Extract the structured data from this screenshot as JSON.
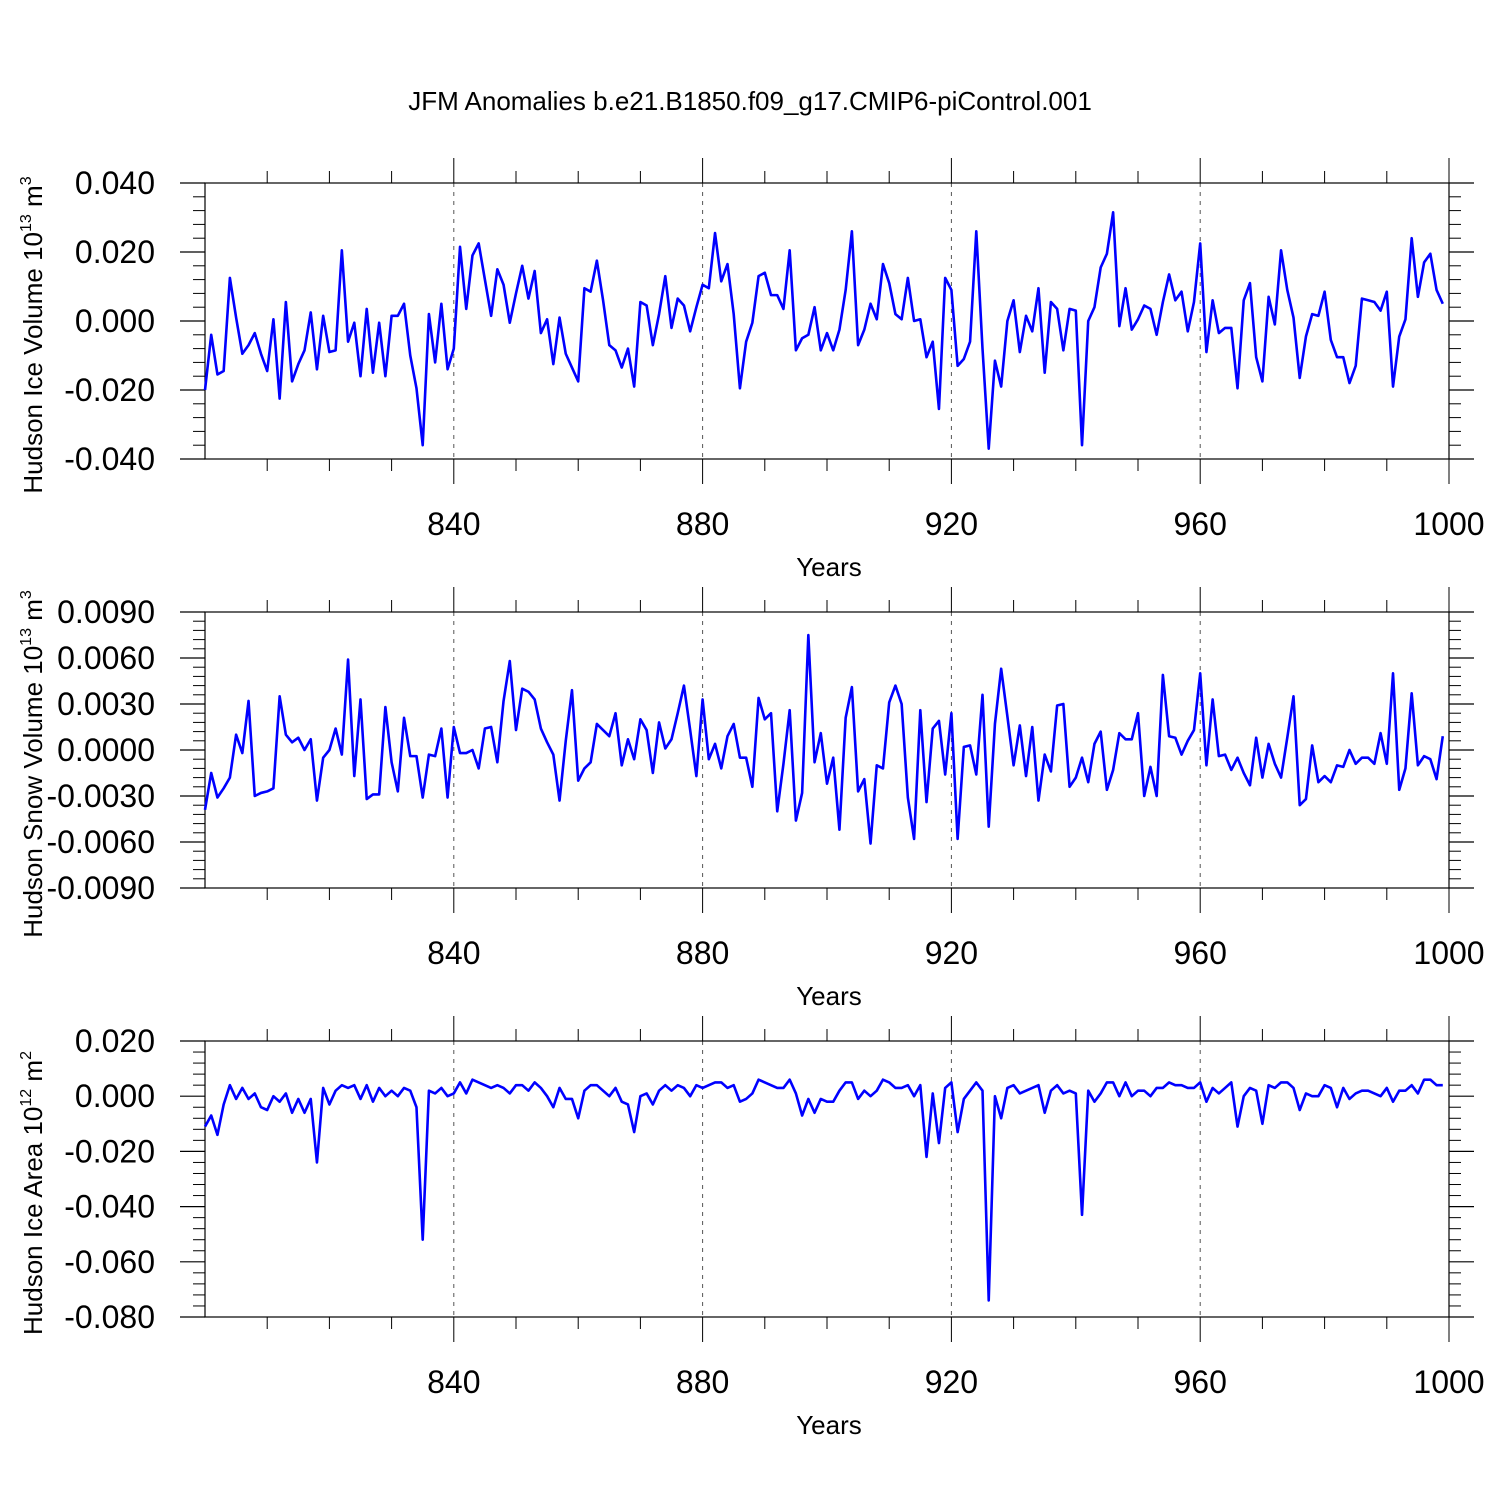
{
  "figure_title": "JFM Anomalies b.e21.B1850.f09_g17.CMIP6-piControl.001",
  "colors": {
    "line": "#0000ff",
    "axis": "#000000",
    "grid": "#555555"
  },
  "chart_data": [
    {
      "type": "line",
      "ylabel": "Hudson Ice Volume 10",
      "ylabel_sup": "13",
      "ylabel_unit": " m",
      "ylabel_unit_sup": "3",
      "xlabel": "Years",
      "xlim": [
        800,
        1000
      ],
      "ylim": [
        -0.04,
        0.04
      ],
      "x_start": 800,
      "x_ticks": [
        840,
        880,
        920,
        960,
        1000
      ],
      "x_tick_labels": [
        "840",
        "880",
        "920",
        "960",
        "1000"
      ],
      "y_ticks": [
        -0.04,
        -0.02,
        0.0,
        0.02,
        0.04
      ],
      "y_tick_labels": [
        "-0.040",
        "-0.020",
        "0.000",
        "0.020",
        "0.040"
      ],
      "gridlines_x": [
        840,
        880,
        920,
        960
      ],
      "series": [
        {
          "values": [
            -0.02,
            -0.004,
            -0.0155,
            -0.0145,
            0.0125,
            0.001,
            -0.0095,
            -0.007,
            -0.0035,
            -0.0095,
            -0.0145,
            0.0005,
            -0.0225,
            0.0055,
            -0.0175,
            -0.0125,
            -0.0085,
            0.0025,
            -0.014,
            0.0015,
            -0.009,
            -0.0085,
            0.0205,
            -0.006,
            -0.0005,
            -0.016,
            0.0035,
            -0.015,
            -0.0005,
            -0.016,
            0.0015,
            0.0015,
            0.005,
            -0.01,
            -0.0195,
            -0.036,
            0.002,
            -0.012,
            0.005,
            -0.014,
            -0.008,
            0.0215,
            0.0035,
            0.019,
            0.0225,
            0.012,
            0.0015,
            0.015,
            0.0105,
            -0.0005,
            0.008,
            0.016,
            0.0065,
            0.0145,
            -0.0035,
            0.0005,
            -0.0125,
            0.001,
            -0.0095,
            -0.0135,
            -0.0175,
            0.0095,
            0.0085,
            0.0175,
            0.006,
            -0.007,
            -0.0085,
            -0.0135,
            -0.008,
            -0.019,
            0.0055,
            0.0045,
            -0.007,
            0.002,
            0.013,
            -0.002,
            0.0065,
            0.0045,
            -0.003,
            0.004,
            0.0105,
            0.0095,
            0.0255,
            0.0115,
            0.0165,
            0.002,
            -0.0195,
            -0.006,
            -0.0005,
            0.013,
            0.014,
            0.0075,
            0.0075,
            0.0035,
            0.0205,
            -0.0085,
            -0.005,
            -0.004,
            0.004,
            -0.0085,
            -0.0035,
            -0.0085,
            -0.0025,
            0.009,
            0.026,
            -0.007,
            -0.0025,
            0.005,
            0.0005,
            0.0165,
            0.011,
            0.002,
            0.0005,
            0.0125,
            0.0,
            0.0005,
            -0.0105,
            -0.006,
            -0.0255,
            0.0125,
            0.009,
            -0.013,
            -0.011,
            -0.006,
            0.026,
            -0.008,
            -0.037,
            -0.0115,
            -0.019,
            0.0,
            0.006,
            -0.009,
            0.0015,
            -0.003,
            0.0095,
            -0.015,
            0.0055,
            0.0035,
            -0.0085,
            0.0035,
            0.003,
            -0.036,
            0.0,
            0.004,
            0.0155,
            0.0195,
            0.0315,
            -0.0015,
            0.0095,
            -0.0025,
            0.0005,
            0.0045,
            0.0035,
            -0.004,
            0.0055,
            0.0135,
            0.006,
            0.0085,
            -0.003,
            0.0055,
            0.0225,
            -0.009,
            0.006,
            -0.0035,
            -0.002,
            -0.002,
            -0.0195,
            0.006,
            0.011,
            -0.0105,
            -0.0175,
            0.007,
            -0.001,
            0.0205,
            0.009,
            0.001,
            -0.0165,
            -0.0045,
            0.002,
            0.0015,
            0.0085,
            -0.0055,
            -0.0105,
            -0.0105,
            -0.018,
            -0.013,
            0.0065,
            0.006,
            0.0055,
            0.003,
            0.0085,
            -0.019,
            -0.0045,
            0.0005,
            0.024,
            0.007,
            0.017,
            0.0195,
            0.009,
            0.005
          ]
        }
      ]
    },
    {
      "type": "line",
      "ylabel": "Hudson Snow Volume 10",
      "ylabel_sup": "13",
      "ylabel_unit": " m",
      "ylabel_unit_sup": "3",
      "xlabel": "Years",
      "xlim": [
        800,
        1000
      ],
      "ylim": [
        -0.009,
        0.009
      ],
      "x_start": 800,
      "x_ticks": [
        840,
        880,
        920,
        960,
        1000
      ],
      "x_tick_labels": [
        "840",
        "880",
        "920",
        "960",
        "1000"
      ],
      "y_ticks": [
        -0.009,
        -0.006,
        -0.003,
        0.0,
        0.003,
        0.006,
        0.009
      ],
      "y_tick_labels": [
        "-0.0090",
        "-0.0060",
        "-0.0030",
        "0.0000",
        "0.0030",
        "0.0060",
        "0.0090"
      ],
      "gridlines_x": [
        840,
        880,
        920,
        960
      ],
      "series": [
        {
          "values": [
            -0.0039,
            -0.0015,
            -0.0031,
            -0.0025,
            -0.0018,
            0.001,
            -0.0002,
            0.0032,
            -0.003,
            -0.0028,
            -0.0027,
            -0.0025,
            0.0035,
            0.001,
            0.0005,
            0.0008,
            0.0,
            0.0007,
            -0.0033,
            -0.0005,
            0.0,
            0.0014,
            -0.0003,
            0.0059,
            -0.0017,
            0.0033,
            -0.0032,
            -0.0029,
            -0.0029,
            0.0028,
            -0.0008,
            -0.0027,
            0.0021,
            -0.0004,
            -0.0004,
            -0.0031,
            -0.0003,
            -0.0004,
            0.0014,
            -0.0031,
            0.0015,
            -0.0002,
            -0.0002,
            0.0,
            -0.0012,
            0.0014,
            0.0015,
            -0.0008,
            0.0032,
            0.0058,
            0.0013,
            0.004,
            0.0038,
            0.0033,
            0.0014,
            0.0005,
            -0.0003,
            -0.0033,
            0.0006,
            0.0039,
            -0.002,
            -0.0012,
            -0.0008,
            0.0017,
            0.0013,
            0.0009,
            0.0024,
            -0.001,
            0.0007,
            -0.0006,
            0.002,
            0.0013,
            -0.0015,
            0.0018,
            0.0001,
            0.0007,
            0.0024,
            0.0042,
            0.0013,
            -0.0017,
            0.0033,
            -0.0006,
            0.0004,
            -0.0012,
            0.0009,
            0.0017,
            -0.0005,
            -0.0005,
            -0.0024,
            0.0034,
            0.002,
            0.0024,
            -0.004,
            -0.0009,
            0.0026,
            -0.0046,
            -0.0028,
            0.0075,
            -0.0008,
            0.0011,
            -0.0022,
            -0.0005,
            -0.0052,
            0.0021,
            0.0041,
            -0.0027,
            -0.0019,
            -0.0061,
            -0.001,
            -0.0012,
            0.0031,
            0.0042,
            0.003,
            -0.0031,
            -0.0058,
            0.0026,
            -0.0034,
            0.0014,
            0.0019,
            -0.0016,
            0.0024,
            -0.0058,
            0.0002,
            0.0003,
            -0.0016,
            0.0036,
            -0.005,
            0.0017,
            0.0053,
            0.0022,
            -0.001,
            0.0016,
            -0.0017,
            0.0015,
            -0.0033,
            -0.0003,
            -0.0014,
            0.0029,
            0.003,
            -0.0024,
            -0.0018,
            -0.0005,
            -0.0021,
            0.0004,
            0.0012,
            -0.0026,
            -0.0013,
            0.0011,
            0.0007,
            0.0007,
            0.0024,
            -0.003,
            -0.0011,
            -0.003,
            0.0049,
            0.0009,
            0.0008,
            -0.0003,
            0.0006,
            0.0013,
            0.005,
            -0.001,
            0.0033,
            -0.0004,
            -0.0003,
            -0.0013,
            -0.0005,
            -0.0015,
            -0.0023,
            0.0008,
            -0.0018,
            0.0004,
            -0.0009,
            -0.0018,
            0.0008,
            0.0035,
            -0.0036,
            -0.0032,
            0.0003,
            -0.0021,
            -0.0017,
            -0.0021,
            -0.001,
            -0.0011,
            0.0,
            -0.0009,
            -0.0005,
            -0.0005,
            -0.0009,
            0.0011,
            -0.0009,
            0.005,
            -0.0026,
            -0.0012,
            0.0037,
            -0.001,
            -0.0004,
            -0.0006,
            -0.0019,
            0.0009
          ]
        }
      ]
    },
    {
      "type": "line",
      "ylabel": "Hudson Ice Area 10",
      "ylabel_sup": "12",
      "ylabel_unit": " m",
      "ylabel_unit_sup": "2",
      "xlabel": "Years",
      "xlim": [
        800,
        1000
      ],
      "ylim": [
        -0.08,
        0.02
      ],
      "x_start": 800,
      "x_ticks": [
        840,
        880,
        920,
        960,
        1000
      ],
      "x_tick_labels": [
        "840",
        "880",
        "920",
        "960",
        "1000"
      ],
      "y_ticks": [
        -0.08,
        -0.06,
        -0.04,
        -0.02,
        0.0,
        0.02
      ],
      "y_tick_labels": [
        "-0.080",
        "-0.060",
        "-0.040",
        "-0.020",
        "0.000",
        "0.020"
      ],
      "gridlines_x": [
        840,
        880,
        920,
        960
      ],
      "series": [
        {
          "values": [
            -0.011,
            -0.007,
            -0.014,
            -0.003,
            0.004,
            -0.001,
            0.003,
            -0.001,
            0.001,
            -0.004,
            -0.005,
            0.0,
            -0.002,
            0.001,
            -0.006,
            -0.001,
            -0.006,
            -0.001,
            -0.024,
            0.003,
            -0.003,
            0.002,
            0.004,
            0.003,
            0.004,
            -0.001,
            0.004,
            -0.002,
            0.003,
            0.0,
            0.002,
            0.0,
            0.003,
            0.002,
            -0.004,
            -0.052,
            0.002,
            0.001,
            0.003,
            0.0,
            0.001,
            0.005,
            0.001,
            0.006,
            0.005,
            0.004,
            0.003,
            0.004,
            0.003,
            0.001,
            0.004,
            0.004,
            0.002,
            0.005,
            0.003,
            0.0,
            -0.004,
            0.003,
            -0.001,
            -0.001,
            -0.008,
            0.002,
            0.004,
            0.004,
            0.002,
            0.0,
            0.003,
            -0.002,
            -0.003,
            -0.013,
            0.0,
            0.001,
            -0.003,
            0.002,
            0.004,
            0.002,
            0.004,
            0.003,
            0.0,
            0.004,
            0.003,
            0.004,
            0.005,
            0.005,
            0.003,
            0.004,
            -0.002,
            -0.001,
            0.001,
            0.006,
            0.005,
            0.004,
            0.003,
            0.003,
            0.006,
            0.001,
            -0.007,
            -0.001,
            -0.006,
            -0.001,
            -0.002,
            -0.002,
            0.002,
            0.005,
            0.005,
            -0.001,
            0.002,
            0.0,
            0.002,
            0.006,
            0.005,
            0.003,
            0.003,
            0.004,
            0.0,
            0.004,
            -0.022,
            0.001,
            -0.017,
            0.003,
            0.005,
            -0.013,
            -0.001,
            0.002,
            0.005,
            0.002,
            -0.074,
            0.0,
            -0.008,
            0.003,
            0.004,
            0.001,
            0.002,
            0.003,
            0.004,
            -0.006,
            0.002,
            0.004,
            0.001,
            0.002,
            0.001,
            -0.043,
            0.002,
            -0.002,
            0.001,
            0.005,
            0.005,
            0.0,
            0.005,
            0.0,
            0.002,
            0.002,
            0.0,
            0.003,
            0.003,
            0.005,
            0.004,
            0.004,
            0.003,
            0.003,
            0.005,
            -0.002,
            0.003,
            0.001,
            0.003,
            0.005,
            -0.011,
            0.0,
            0.003,
            0.002,
            -0.01,
            0.004,
            0.003,
            0.005,
            0.005,
            0.003,
            -0.005,
            0.001,
            0.0,
            0.0,
            0.004,
            0.003,
            -0.004,
            0.003,
            -0.001,
            0.001,
            0.002,
            0.002,
            0.001,
            0.0,
            0.003,
            -0.002,
            0.002,
            0.002,
            0.004,
            0.001,
            0.006,
            0.006,
            0.004,
            0.004
          ]
        }
      ]
    }
  ]
}
